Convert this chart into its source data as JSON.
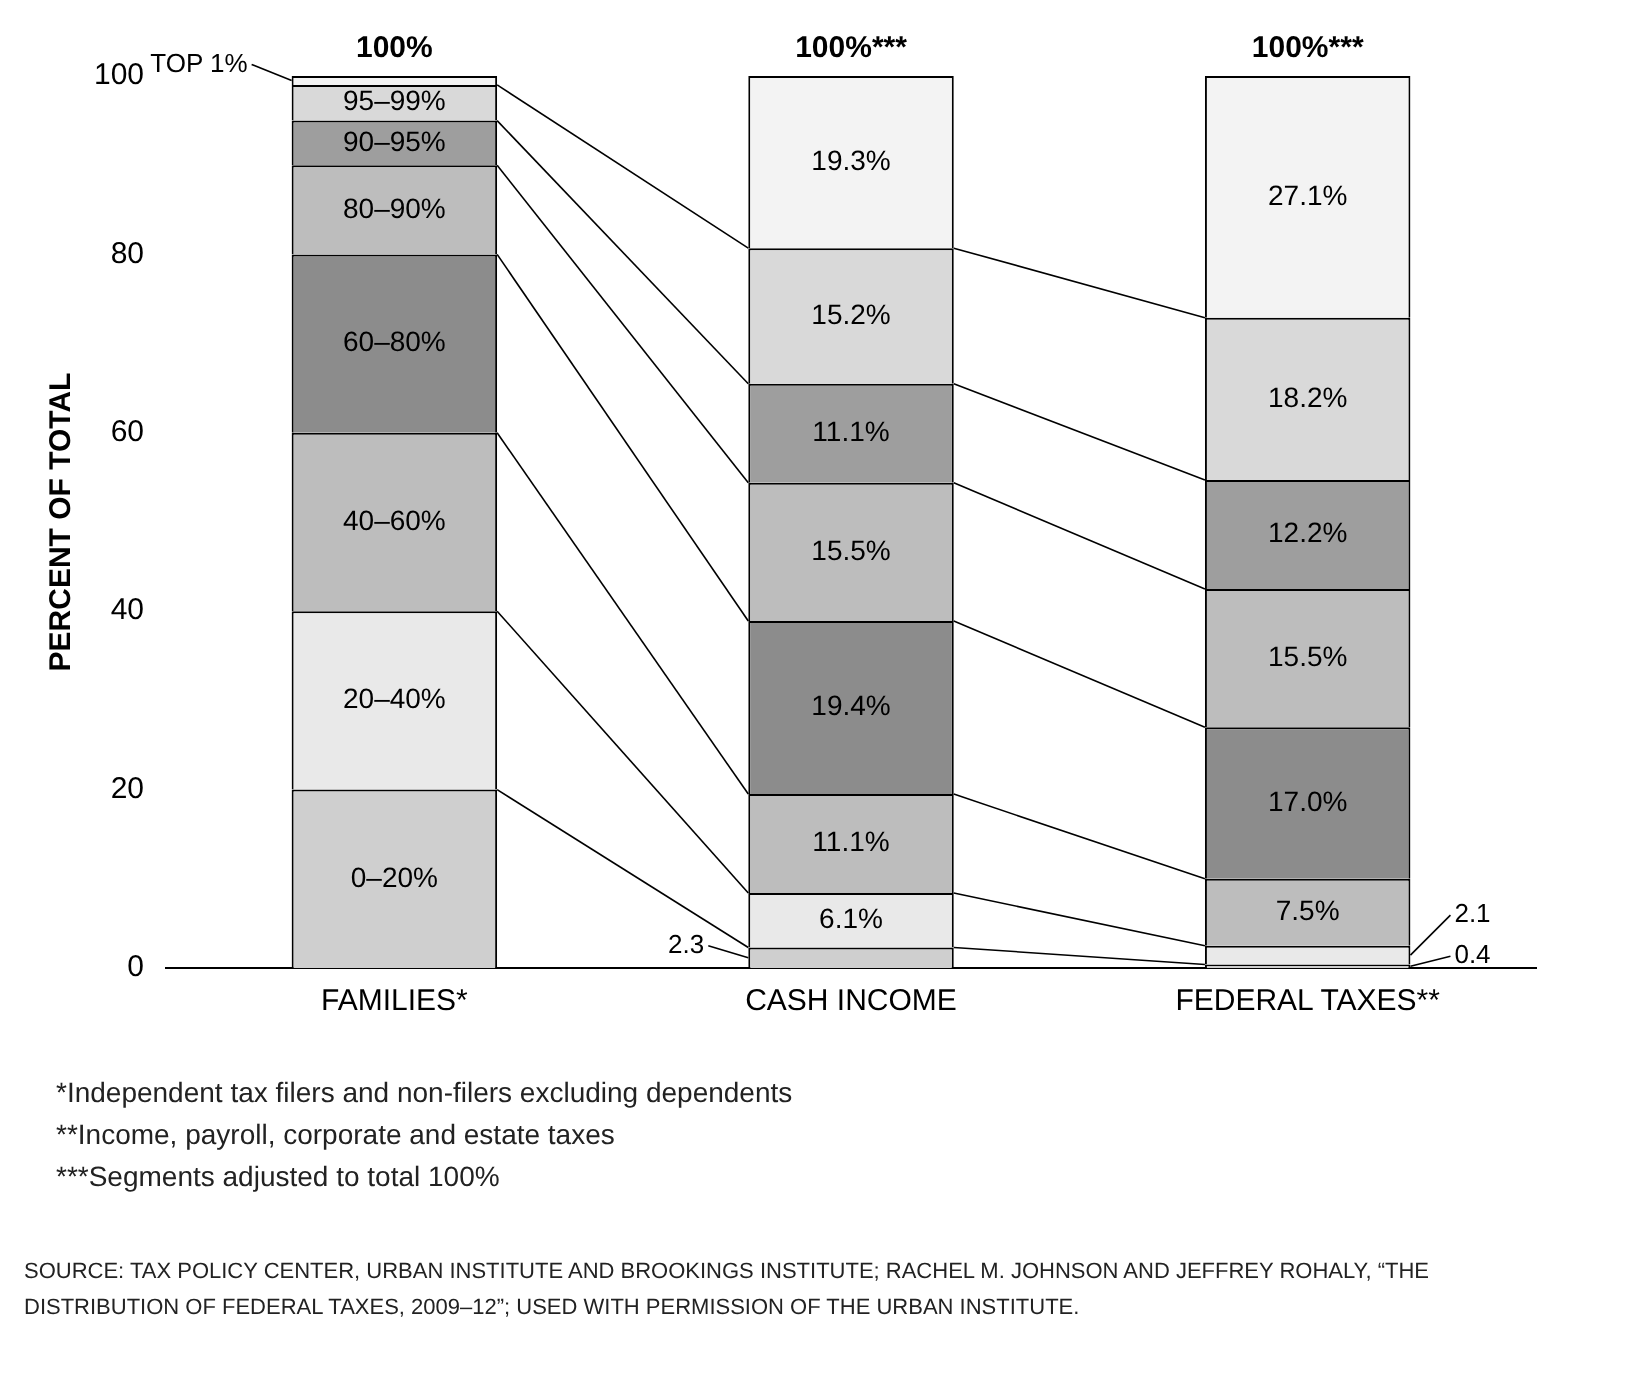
{
  "chart_data": {
    "type": "bar",
    "stacked": true,
    "ylabel": "PERCENT OF TOTAL",
    "categories": [
      "FAMILIES*",
      "CASH INCOME",
      "FEDERAL TAXES**"
    ],
    "series": [
      {
        "name": "0–20%",
        "color": "#cfcfcf",
        "values": [
          20,
          2.3,
          0.4
        ],
        "value_labels": [
          null,
          "2.3",
          "0.4"
        ]
      },
      {
        "name": "20–40%",
        "color": "#e9e9e9",
        "values": [
          20,
          6.1,
          2.1
        ],
        "value_labels": [
          null,
          "6.1%",
          "2.1"
        ]
      },
      {
        "name": "40–60%",
        "color": "#bdbdbd",
        "values": [
          20,
          11.1,
          7.5
        ],
        "value_labels": [
          null,
          "11.1%",
          "7.5%"
        ]
      },
      {
        "name": "60–80%",
        "color": "#8c8c8c",
        "values": [
          20,
          19.4,
          17.0
        ],
        "value_labels": [
          null,
          "19.4%",
          "17.0%"
        ]
      },
      {
        "name": "80–90%",
        "color": "#bdbdbd",
        "values": [
          10,
          15.5,
          15.5
        ],
        "value_labels": [
          null,
          "15.5%",
          "15.5%"
        ]
      },
      {
        "name": "90–95%",
        "color": "#9e9e9e",
        "values": [
          5,
          11.1,
          12.2
        ],
        "value_labels": [
          null,
          "11.1%",
          "12.2%"
        ]
      },
      {
        "name": "95–99%",
        "color": "#d9d9d9",
        "values": [
          4,
          15.2,
          18.2
        ],
        "value_labels": [
          null,
          "15.2%",
          "18.2%"
        ]
      },
      {
        "name": "TOP 1%",
        "color": "#f3f3f3",
        "values": [
          1,
          19.3,
          27.1
        ],
        "value_labels": [
          null,
          "19.3%",
          "27.1%"
        ]
      }
    ],
    "totals": [
      "100%",
      "100%***",
      "100%***"
    ],
    "ylim": [
      0,
      100
    ],
    "yticks": [
      0,
      20,
      40,
      60,
      80,
      100
    ],
    "grid": false,
    "legend": false,
    "annotations": [
      "*Independent tax filers and non-filers excluding dependents",
      "**Income, payroll, corporate and estate taxes",
      "***Segments adjusted to total 100%",
      "SOURCE: TAX POLICY CENTER, URBAN INSTITUTE AND BROOKINGS INSTITUTE; RACHEL M. JOHNSON AND JEFFREY ROHALY, “THE DISTRIBUTION OF FEDERAL TAXES, 2009–12”; USED WITH PERMISSION OF THE URBAN INSTITUTE."
    ]
  }
}
